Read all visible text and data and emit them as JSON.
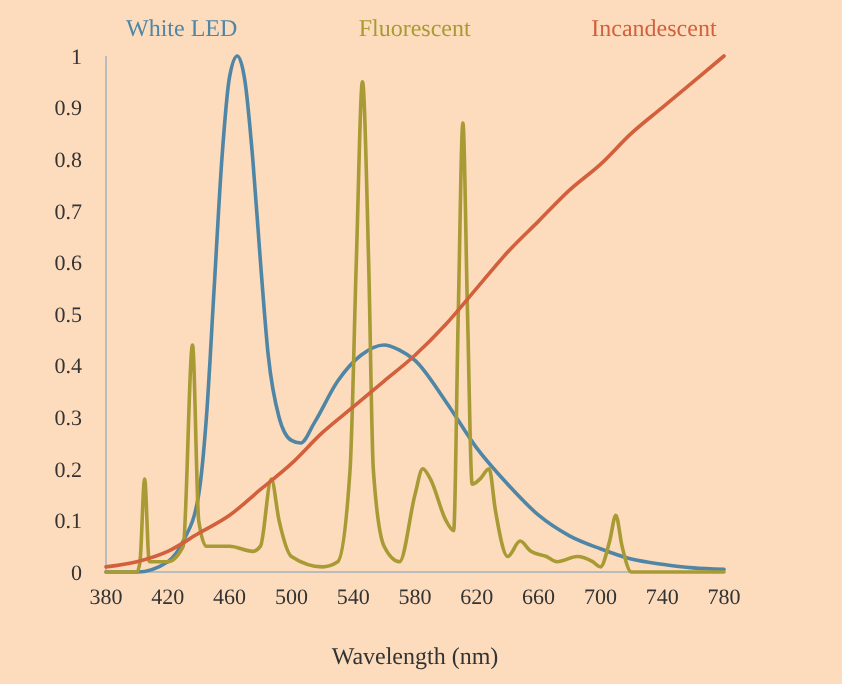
{
  "chart_data": {
    "type": "line",
    "xlabel": "Wavelength (nm)",
    "xlim": [
      380,
      780
    ],
    "xticks": [
      380,
      420,
      460,
      500,
      540,
      580,
      620,
      660,
      700,
      740,
      780
    ],
    "ylim": [
      0,
      1
    ],
    "yticks": [
      0,
      0.1,
      0.2,
      0.3,
      0.4,
      0.5,
      0.6,
      0.7,
      0.8,
      0.9,
      1
    ],
    "grid": false,
    "legend": "top",
    "marker": "none",
    "line_style": "solid",
    "series": [
      {
        "name": "White LED",
        "color": "#4f86a6",
        "x": [
          380,
          400,
          420,
          430,
          440,
          445,
          450,
          455,
          460,
          465,
          470,
          475,
          480,
          485,
          492,
          500,
          506,
          515,
          530,
          545,
          560,
          570,
          580,
          600,
          620,
          640,
          660,
          680,
          700,
          720,
          740,
          760,
          780
        ],
        "values": [
          0,
          0,
          0.02,
          0.06,
          0.15,
          0.3,
          0.55,
          0.8,
          0.96,
          1,
          0.95,
          0.8,
          0.6,
          0.42,
          0.3,
          0.255,
          0.25,
          0.29,
          0.37,
          0.42,
          0.44,
          0.43,
          0.41,
          0.33,
          0.24,
          0.17,
          0.11,
          0.07,
          0.045,
          0.025,
          0.015,
          0.008,
          0.005
        ]
      },
      {
        "name": "Fluorescent",
        "color": "#a89a35",
        "x": [
          380,
          400,
          402,
          405,
          408,
          420,
          430,
          436,
          440,
          445,
          460,
          475,
          480,
          487,
          492,
          500,
          520,
          530,
          538,
          542,
          546,
          550,
          553,
          560,
          570,
          580,
          585,
          590,
          600,
          605,
          608,
          611,
          614,
          617,
          622,
          628,
          632,
          640,
          648,
          655,
          665,
          672,
          685,
          695,
          700,
          706,
          710,
          714,
          720,
          780
        ],
        "values": [
          0,
          0,
          0.02,
          0.18,
          0.02,
          0.02,
          0.05,
          0.44,
          0.1,
          0.05,
          0.05,
          0.04,
          0.05,
          0.18,
          0.1,
          0.03,
          0.01,
          0.02,
          0.2,
          0.6,
          0.95,
          0.6,
          0.2,
          0.05,
          0.02,
          0.15,
          0.2,
          0.18,
          0.1,
          0.08,
          0.5,
          0.87,
          0.5,
          0.17,
          0.18,
          0.2,
          0.12,
          0.03,
          0.06,
          0.04,
          0.03,
          0.02,
          0.03,
          0.02,
          0.01,
          0.06,
          0.11,
          0.05,
          0,
          0
        ]
      },
      {
        "name": "Incandescent",
        "color": "#d2603c",
        "x": [
          380,
          400,
          420,
          440,
          460,
          480,
          500,
          520,
          540,
          560,
          580,
          600,
          620,
          640,
          660,
          680,
          700,
          720,
          740,
          760,
          780
        ],
        "values": [
          0.01,
          0.02,
          0.04,
          0.075,
          0.11,
          0.16,
          0.21,
          0.27,
          0.32,
          0.37,
          0.42,
          0.48,
          0.55,
          0.62,
          0.68,
          0.74,
          0.79,
          0.85,
          0.9,
          0.95,
          1
        ]
      }
    ]
  }
}
